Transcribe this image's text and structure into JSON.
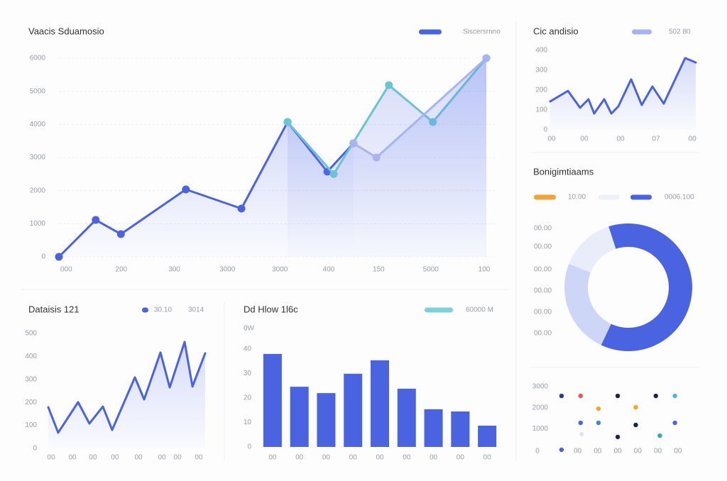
{
  "chart_data": [
    {
      "type": "line",
      "title": "Vaacis Sduamosio",
      "legend": [
        {
          "name": "Siscersrnno",
          "color": "#4a63e0"
        }
      ],
      "xlim": [
        0,
        100
      ],
      "xticks": [
        {
          "value": 1.7,
          "label": "000"
        },
        {
          "value": 14.6,
          "label": "200"
        },
        {
          "value": 27,
          "label": "300"
        },
        {
          "value": 39.4,
          "label": "3000"
        },
        {
          "value": 51.7,
          "label": "3000"
        },
        {
          "value": 63.1,
          "label": "400"
        },
        {
          "value": 74.8,
          "label": "150"
        },
        {
          "value": 87,
          "label": "5000"
        },
        {
          "value": 99.5,
          "label": "100"
        }
      ],
      "ylim": [
        0,
        6000
      ],
      "yticks": [
        0,
        1000,
        2000,
        3000,
        4000,
        5000,
        6000
      ],
      "grid": true,
      "markers": true,
      "area": true,
      "series": [
        {
          "color": "#4a63e0",
          "x": [
            0,
            8.6,
            14.5,
            29.7,
            42.7,
            53.5,
            62.8,
            68.9
          ],
          "values": [
            0,
            1114,
            686,
            2036,
            1457,
            4071,
            2571,
            3429
          ]
        },
        {
          "color": "#6cc3d5",
          "x": [
            53.5,
            64.3,
            77.2,
            87.5,
            100
          ],
          "values": [
            4071,
            2500,
            5186,
            4071,
            6000
          ]
        },
        {
          "color": "#a9b4ee",
          "x": [
            68.9,
            74.3,
            100
          ],
          "values": [
            3429,
            3000,
            6000
          ]
        }
      ]
    },
    {
      "type": "line",
      "title": "Cic andisio",
      "legend": [
        {
          "name": "502 80",
          "color": "#a9b4ee"
        }
      ],
      "xlim": [
        0,
        100
      ],
      "xticks": [
        {
          "value": 1,
          "label": "00"
        },
        {
          "value": 23.4,
          "label": "00"
        },
        {
          "value": 48.3,
          "label": "00"
        },
        {
          "value": 72.7,
          "label": "07"
        },
        {
          "value": 97.6,
          "label": "00"
        }
      ],
      "ylim": [
        0,
        400
      ],
      "yticks": [
        0,
        100,
        200,
        300,
        400
      ],
      "grid": false,
      "markers": false,
      "area": true,
      "series": [
        {
          "color": "#4a63e0",
          "x": [
            0,
            12.2,
            20.5,
            26.3,
            30.2,
            37.1,
            42,
            46.8,
            55.6,
            62.9,
            70.2,
            78,
            92.7,
            100
          ],
          "values": [
            143,
            196,
            111,
            154,
            82,
            154,
            82,
            118,
            254,
            125,
            218,
            132,
            361,
            339
          ]
        }
      ]
    },
    {
      "type": "pie",
      "title": "Bonigimtiaams",
      "legend": [
        {
          "name": "10.00",
          "color": "#f0a43a"
        },
        {
          "color": "#eef1f8"
        },
        {
          "name": "0006.100",
          "color": "#4a63e0"
        }
      ],
      "values": [
        62,
        24,
        14
      ],
      "colors": [
        "#4a63e0",
        "#cdd6f6",
        "#e9edf9"
      ],
      "annotations": [
        "00.00",
        "00.00",
        "00.00",
        "00.00",
        "00.00",
        "00.00"
      ]
    },
    {
      "type": "line",
      "title": "Dataisis 121",
      "legend": [
        {
          "name": "30.10",
          "color": "#4a63e0"
        },
        {
          "name": "3014"
        }
      ],
      "xlim": [
        0,
        100
      ],
      "xticks": [
        {
          "value": 1.8,
          "label": "00"
        },
        {
          "value": 15.4,
          "label": "00"
        },
        {
          "value": 28.5,
          "label": "00"
        },
        {
          "value": 42.5,
          "label": "00"
        },
        {
          "value": 57.5,
          "label": "00"
        },
        {
          "value": 72.4,
          "label": "00"
        },
        {
          "value": 82.4,
          "label": "00"
        },
        {
          "value": 95.9,
          "label": "00"
        }
      ],
      "ylim": [
        0,
        500
      ],
      "yticks": [
        0,
        100,
        200,
        300,
        400,
        500
      ],
      "grid": false,
      "markers": false,
      "area": true,
      "series": [
        {
          "color": "#4a63e0",
          "x": [
            0,
            6.3,
            19,
            26.2,
            34.8,
            40.7,
            55.2,
            61.1,
            71.5,
            77.4,
            86.9,
            91.9,
            100
          ],
          "values": [
            179,
            68,
            201,
            108,
            182,
            80,
            309,
            213,
            417,
            265,
            463,
            269,
            414
          ]
        }
      ]
    },
    {
      "type": "bar",
      "title": "Dd Hlow 1l6c",
      "y_label": "0W",
      "legend": [
        {
          "name": "60000 M",
          "color": "#7fd0d8"
        }
      ],
      "categories": [
        "00",
        "00",
        "00",
        "00",
        "00",
        "00",
        "00",
        "00",
        "00"
      ],
      "values": [
        38,
        24.6,
        22,
        29.9,
        35.4,
        23.8,
        15.4,
        14.5,
        8.7
      ],
      "color": "#4a63e0",
      "ylim": [
        0,
        40
      ],
      "yticks": [
        0,
        10,
        20,
        30,
        40
      ]
    },
    {
      "type": "scatter",
      "xlim": [
        0,
        7.5
      ],
      "xticks": [
        0,
        {
          "value": 2,
          "label": "00"
        },
        {
          "value": 3,
          "label": "00"
        },
        {
          "value": 4,
          "label": "00"
        },
        {
          "value": 5,
          "label": "00"
        },
        {
          "value": 6,
          "label": "00"
        },
        {
          "value": 7,
          "label": "00"
        }
      ],
      "ylim": [
        0,
        3000
      ],
      "yticks": [
        1000,
        2000,
        3000
      ],
      "x": [
        1.2,
        2.15,
        3.04,
        4,
        4.9,
        5.9,
        6.85,
        2.15,
        3.04,
        4,
        4.9,
        6.85,
        6.1,
        2.2,
        1.2
      ],
      "values": [
        2560,
        2560,
        1950,
        2560,
        2020,
        2560,
        2560,
        1280,
        1280,
        610,
        1180,
        1280,
        670,
        740,
        0
      ],
      "colors": [
        "#2b3a8c",
        "#e0584f",
        "#f0a43a",
        "#1f2540",
        "#f0a43a",
        "#1f2540",
        "#4fb6d0",
        "#4a63e0",
        "#4a7fd8",
        "#1f2540",
        "#1f2540",
        "#4a63e0",
        "#3aa6b5",
        "#dfe3ee",
        "#4a63e0"
      ]
    }
  ]
}
